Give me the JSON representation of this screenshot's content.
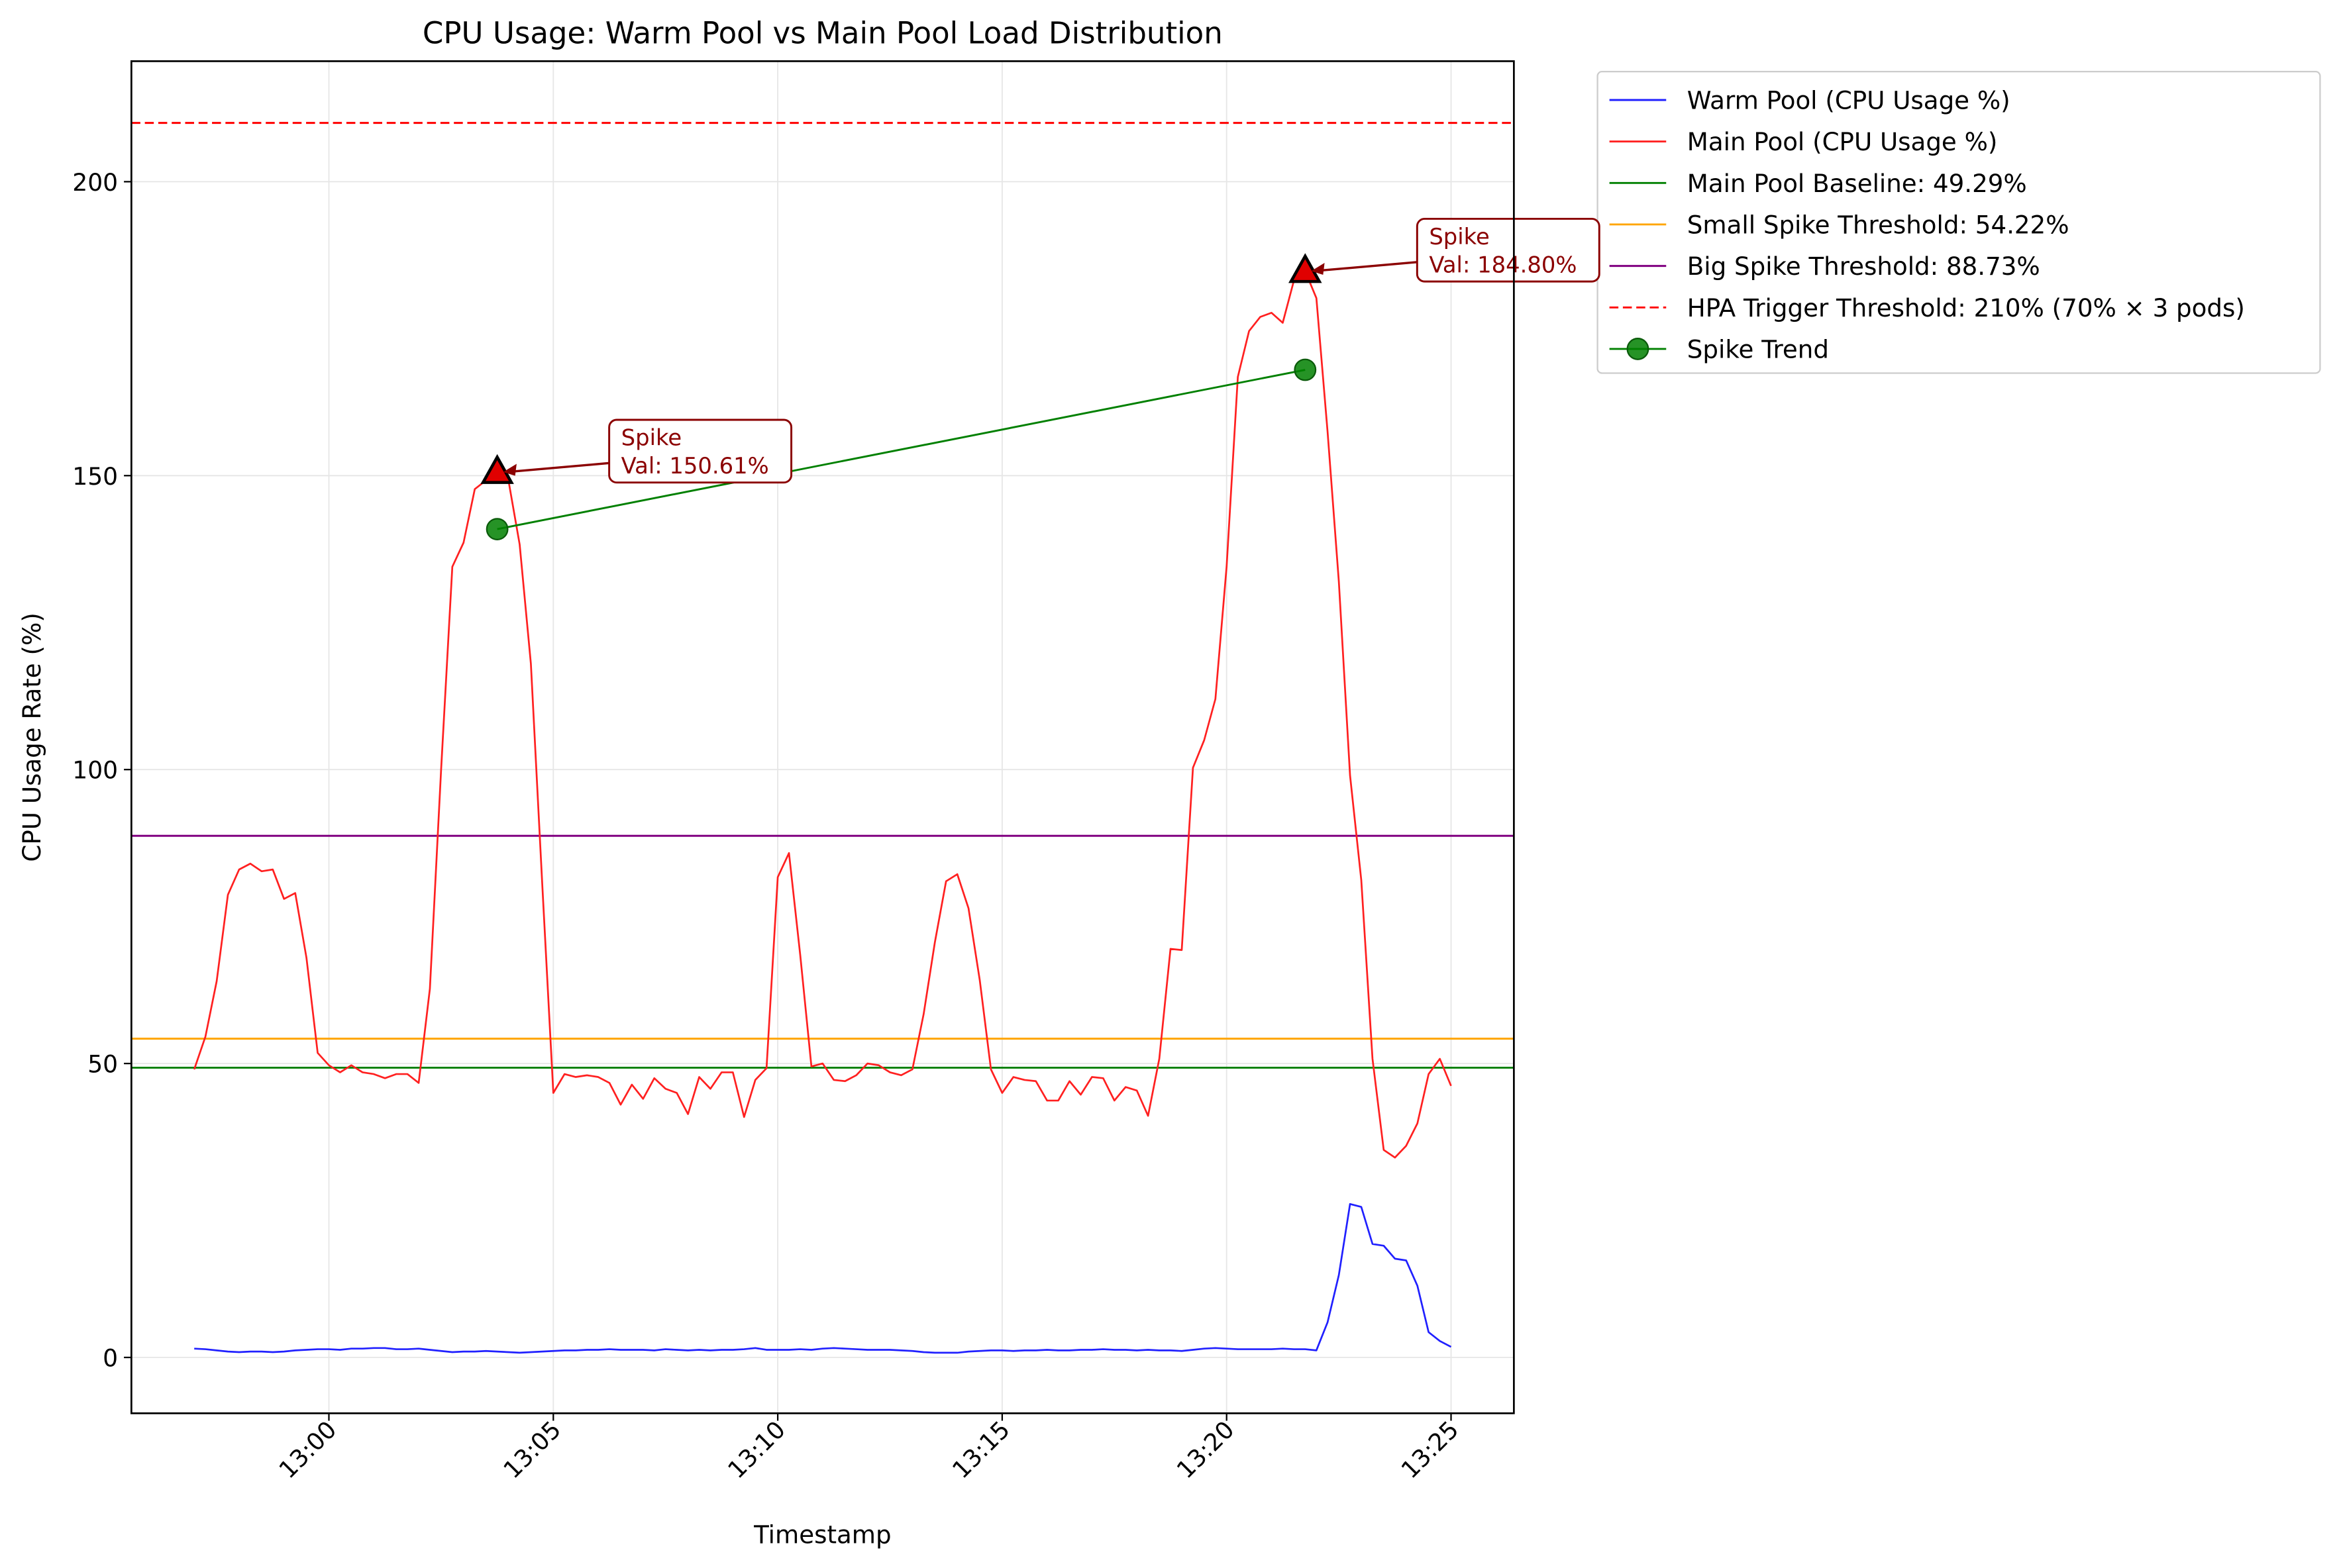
{
  "chart_data": {
    "type": "line",
    "title": "CPU Usage: Warm Pool vs Main Pool Load Distribution",
    "xlabel": "Timestamp",
    "ylabel": "CPU Usage Rate (%)",
    "x": [
      "12:57:00",
      "12:57:15",
      "12:57:30",
      "12:57:45",
      "12:58:00",
      "12:58:15",
      "12:58:30",
      "12:58:45",
      "12:59:00",
      "12:59:15",
      "12:59:30",
      "12:59:45",
      "13:00:00",
      "13:00:15",
      "13:00:30",
      "13:00:45",
      "13:01:00",
      "13:01:15",
      "13:01:30",
      "13:01:45",
      "13:02:00",
      "13:02:15",
      "13:02:30",
      "13:02:45",
      "13:03:00",
      "13:03:15",
      "13:03:30",
      "13:03:45",
      "13:04:00",
      "13:04:15",
      "13:04:30",
      "13:04:45",
      "13:05:00",
      "13:05:15",
      "13:05:30",
      "13:05:45",
      "13:06:00",
      "13:06:15",
      "13:06:30",
      "13:06:45",
      "13:07:00",
      "13:07:15",
      "13:07:30",
      "13:07:45",
      "13:08:00",
      "13:08:15",
      "13:08:30",
      "13:08:45",
      "13:09:00",
      "13:09:15",
      "13:09:30",
      "13:09:45",
      "13:10:00",
      "13:10:15",
      "13:10:30",
      "13:10:45",
      "13:11:00",
      "13:11:15",
      "13:11:30",
      "13:11:45",
      "13:12:00",
      "13:12:15",
      "13:12:30",
      "13:12:45",
      "13:13:00",
      "13:13:15",
      "13:13:30",
      "13:13:45",
      "13:14:00",
      "13:14:15",
      "13:14:30",
      "13:14:45",
      "13:15:00",
      "13:15:15",
      "13:15:30",
      "13:15:45",
      "13:16:00",
      "13:16:15",
      "13:16:30",
      "13:16:45",
      "13:17:00",
      "13:17:15",
      "13:17:30",
      "13:17:45",
      "13:18:00",
      "13:18:15",
      "13:18:30",
      "13:18:45",
      "13:19:00",
      "13:19:15",
      "13:19:30",
      "13:19:45",
      "13:20:00",
      "13:20:15",
      "13:20:30",
      "13:20:45",
      "13:21:00",
      "13:21:15",
      "13:21:30",
      "13:21:45",
      "13:22:00",
      "13:22:15",
      "13:22:30",
      "13:22:45",
      "13:23:00",
      "13:23:15",
      "13:23:30",
      "13:23:45",
      "13:24:00",
      "13:24:15",
      "13:24:30",
      "13:24:45",
      "13:25:00"
    ],
    "series": [
      {
        "name": "Warm Pool (CPU Usage %)",
        "color": "#2020ff",
        "values": [
          1.5,
          1.4,
          1.2,
          1.0,
          0.9,
          1.0,
          1.0,
          0.9,
          1.0,
          1.2,
          1.3,
          1.4,
          1.4,
          1.3,
          1.5,
          1.5,
          1.6,
          1.6,
          1.4,
          1.4,
          1.5,
          1.3,
          1.1,
          0.9,
          1.0,
          1.0,
          1.1,
          1.0,
          0.9,
          0.8,
          0.9,
          1.0,
          1.1,
          1.2,
          1.2,
          1.3,
          1.3,
          1.4,
          1.3,
          1.3,
          1.3,
          1.2,
          1.4,
          1.3,
          1.2,
          1.3,
          1.2,
          1.3,
          1.3,
          1.4,
          1.6,
          1.3,
          1.3,
          1.3,
          1.4,
          1.3,
          1.5,
          1.6,
          1.5,
          1.4,
          1.3,
          1.3,
          1.3,
          1.2,
          1.1,
          0.9,
          0.8,
          0.8,
          0.8,
          1.0,
          1.1,
          1.2,
          1.2,
          1.1,
          1.2,
          1.2,
          1.3,
          1.2,
          1.2,
          1.3,
          1.3,
          1.4,
          1.3,
          1.3,
          1.2,
          1.3,
          1.2,
          1.2,
          1.1,
          1.3,
          1.5,
          1.6,
          1.5,
          1.4,
          1.4,
          1.4,
          1.4,
          1.5,
          1.4,
          1.4,
          1.2,
          6.0,
          14.0,
          26.1,
          25.6,
          19.3,
          19.0,
          16.8,
          16.5,
          12.2,
          4.3,
          2.8,
          1.8
        ]
      },
      {
        "name": "Main Pool (CPU Usage %)",
        "color": "#ff2020",
        "values": [
          49,
          54.6,
          64,
          78.7,
          83,
          84,
          82.7,
          83,
          78,
          79,
          68,
          51.8,
          49.7,
          48.5,
          49.7,
          48.5,
          48.2,
          47.5,
          48.2,
          48.2,
          46.7,
          62.7,
          100,
          134.5,
          138.6,
          147.7,
          149.2,
          150.61,
          149.2,
          138.3,
          118,
          81,
          45,
          48.2,
          47.7,
          48,
          47.7,
          46.7,
          43,
          46.4,
          44,
          47.5,
          45.7,
          45,
          41.4,
          47.7,
          45.7,
          48.5,
          48.5,
          40.9,
          47.2,
          49.2,
          81.7,
          85.8,
          68.5,
          49.5,
          50,
          47.2,
          47,
          48,
          50,
          49.7,
          48.5,
          48,
          49,
          58.4,
          70.6,
          81,
          82.2,
          76.4,
          64.2,
          49,
          45,
          47.7,
          47.2,
          47,
          43.7,
          43.7,
          47,
          44.7,
          47.7,
          47.5,
          43.7,
          46,
          45.4,
          41.1,
          50.8,
          69.5,
          69.3,
          100.3,
          105,
          112,
          134.5,
          166.8,
          174.6,
          177,
          177.7,
          176,
          183.2,
          184.8,
          180.2,
          157.4,
          132,
          99,
          81.2,
          50.8,
          35.3,
          34,
          36,
          39.8,
          48.2,
          50.8,
          46.2
        ]
      }
    ],
    "reference_lines": [
      {
        "name": "Main Pool Baseline: 49.29%",
        "value": 49.29,
        "color": "#008000",
        "dashed": false
      },
      {
        "name": "Small Spike Threshold: 54.22%",
        "value": 54.22,
        "color": "#ffa500",
        "dashed": false
      },
      {
        "name": "Big Spike Threshold: 88.73%",
        "value": 88.73,
        "color": "#800080",
        "dashed": false
      },
      {
        "name": "HPA Trigger Threshold: 210% (70% × 3 pods)",
        "value": 210,
        "color": "#ff0000",
        "dashed": true
      }
    ],
    "spikes": [
      {
        "title": "Spike",
        "x": "13:03:45",
        "value": 150.61,
        "label": "Val: 150.61%"
      },
      {
        "title": "Spike",
        "x": "13:21:45",
        "value": 184.8,
        "label": "Val: 184.80%"
      }
    ],
    "trend": {
      "name": "Spike Trend",
      "color": "#008000",
      "x": [
        "13:03:45",
        "13:21:45"
      ],
      "values": [
        140.9,
        168.0
      ]
    },
    "xlim": [
      "12:55:36",
      "13:26:24"
    ],
    "xticks": [
      {
        "value": "13:00:00",
        "label": "13:00"
      },
      {
        "value": "13:05:00",
        "label": "13:05"
      },
      {
        "value": "13:10:00",
        "label": "13:10"
      },
      {
        "value": "13:15:00",
        "label": "13:15"
      },
      {
        "value": "13:20:00",
        "label": "13:20"
      },
      {
        "value": "13:25:00",
        "label": "13:25"
      }
    ],
    "ylim": [
      -9.5,
      220.5
    ],
    "yticks": [
      0,
      50,
      100,
      150,
      200
    ],
    "grid": true,
    "legend": "outside upper right"
  }
}
